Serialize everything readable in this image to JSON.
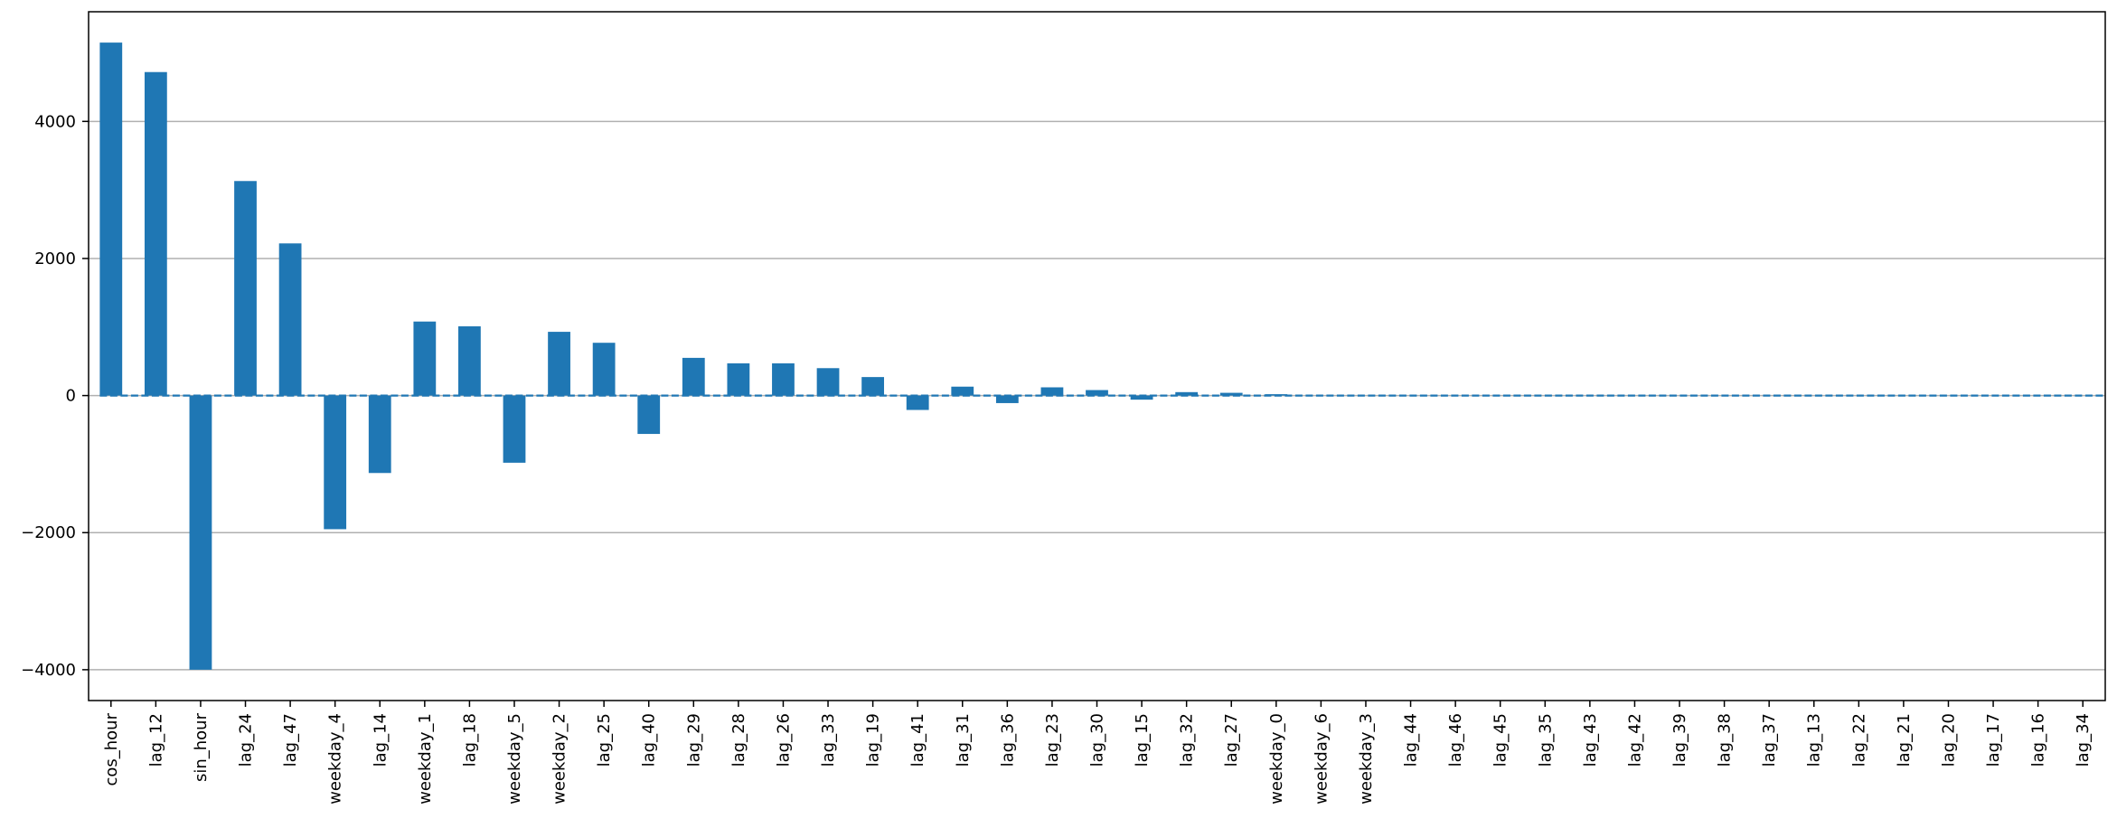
{
  "chart_data": {
    "type": "bar",
    "title": "",
    "xlabel": "",
    "ylabel": "",
    "categories": [
      "cos_hour",
      "lag_12",
      "sin_hour",
      "lag_24",
      "lag_47",
      "weekday_4",
      "lag_14",
      "weekday_1",
      "lag_18",
      "weekday_5",
      "weekday_2",
      "lag_25",
      "lag_40",
      "lag_29",
      "lag_28",
      "lag_26",
      "lag_33",
      "lag_19",
      "lag_41",
      "lag_31",
      "lag_36",
      "lag_23",
      "lag_30",
      "lag_15",
      "lag_32",
      "lag_27",
      "weekday_0",
      "weekday_6",
      "weekday_3",
      "lag_44",
      "lag_46",
      "lag_45",
      "lag_35",
      "lag_43",
      "lag_42",
      "lag_39",
      "lag_38",
      "lag_37",
      "lag_13",
      "lag_22",
      "lag_21",
      "lag_20",
      "lag_17",
      "lag_16",
      "lag_34"
    ],
    "values": [
      5150,
      4720,
      -4000,
      3130,
      2220,
      -1950,
      -1130,
      1080,
      1010,
      -980,
      930,
      770,
      -560,
      550,
      470,
      470,
      400,
      270,
      -210,
      130,
      -110,
      120,
      80,
      -60,
      50,
      40,
      20,
      0,
      0,
      0,
      0,
      0,
      0,
      0,
      0,
      0,
      0,
      0,
      0,
      0,
      0,
      0,
      0,
      0,
      0
    ],
    "ylim": [
      -4450,
      5600
    ],
    "yticks": [
      -4000,
      -2000,
      0,
      2000,
      4000
    ],
    "ytick_labels": [
      "−4000",
      "−2000",
      "0",
      "2000",
      "4000"
    ],
    "grid": "y",
    "zero_line": "dashed",
    "colors": {
      "bar": "#1f77b4",
      "zero_line": "#1f77b4",
      "grid": "#b0b0b0",
      "axes": "#000000"
    }
  }
}
